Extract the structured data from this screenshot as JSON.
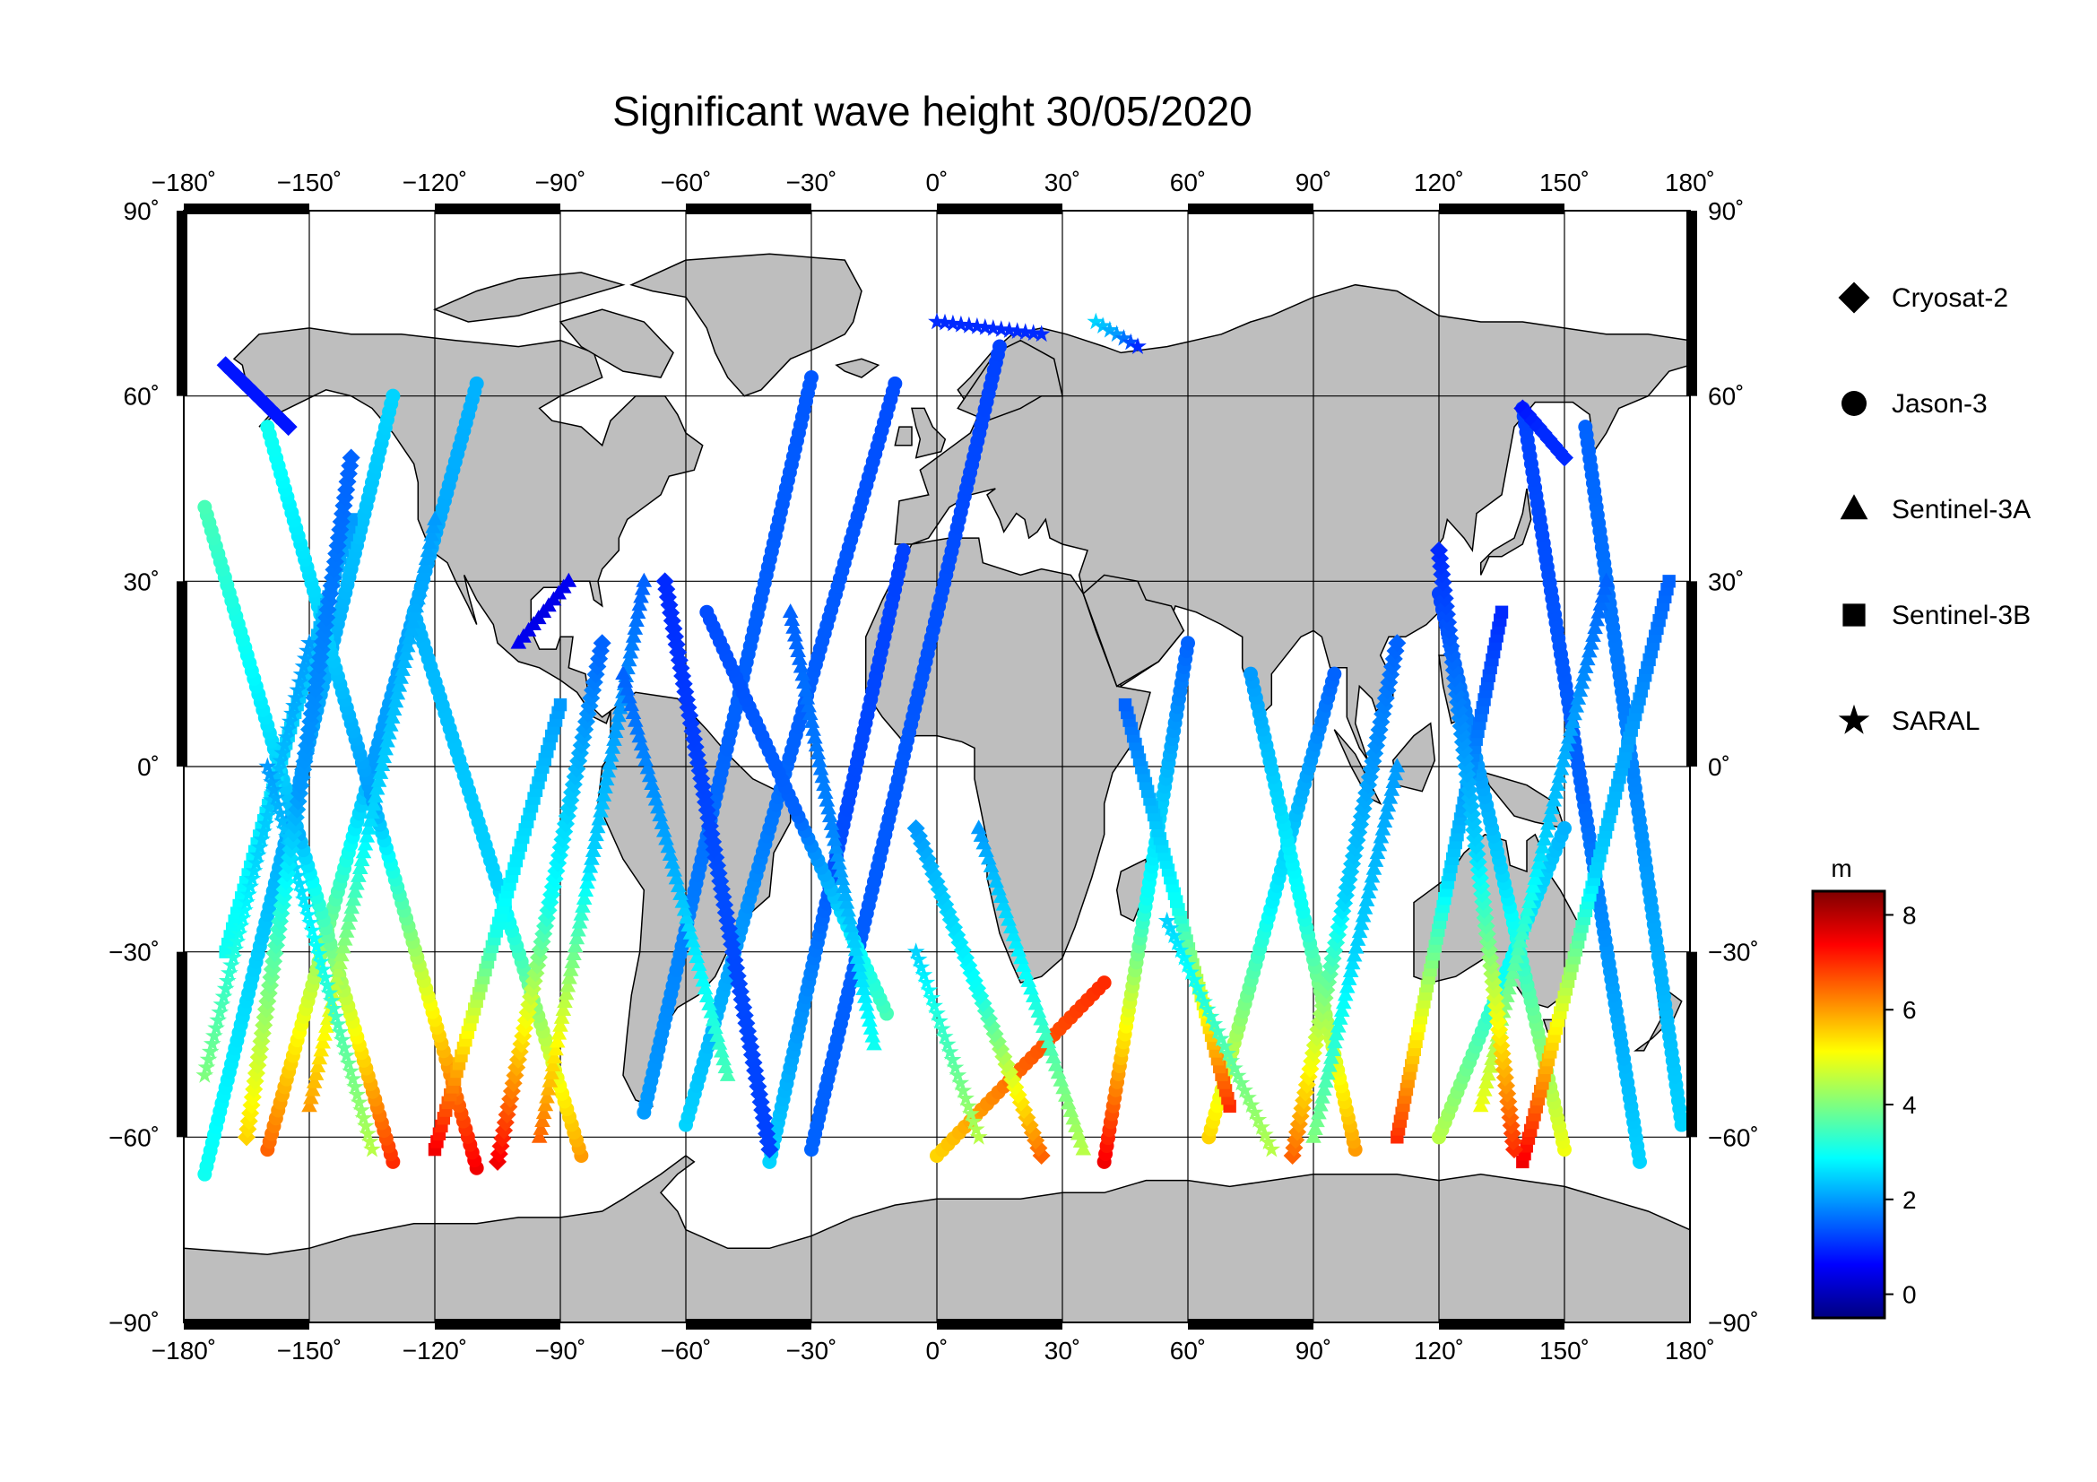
{
  "title": "Significant wave height 30/05/2020",
  "axes": {
    "lon_labels": [
      "−180˚",
      "−150˚",
      "−120˚",
      "−90˚",
      "−60˚",
      "−30˚",
      "0˚",
      "30˚",
      "60˚",
      "90˚",
      "120˚",
      "150˚",
      "180˚"
    ],
    "lat_labels": [
      "90˚",
      "60˚",
      "30˚",
      "0˚",
      "−30˚",
      "−60˚",
      "−90˚"
    ],
    "lon_range": [
      -180,
      180
    ],
    "lat_range": [
      -90,
      90
    ],
    "grid": true
  },
  "legend": {
    "placement": "right",
    "items": [
      {
        "label": "Cryosat-2",
        "symbol": "diamond-icon"
      },
      {
        "label": "Jason-3",
        "symbol": "circle-icon"
      },
      {
        "label": "Sentinel-3A",
        "symbol": "triangle-icon"
      },
      {
        "label": "Sentinel-3B",
        "symbol": "square-icon"
      },
      {
        "label": "SARAL",
        "symbol": "star-icon"
      }
    ]
  },
  "colorbar": {
    "unit": "m",
    "range": [
      -0.5,
      8.5
    ],
    "tick_labels": [
      "8",
      "6",
      "4",
      "2",
      "0"
    ],
    "colormap": "jet",
    "colors": [
      "#00007f",
      "#0000ff",
      "#007fff",
      "#00ffff",
      "#7fff7f",
      "#ffff00",
      "#ff7f00",
      "#ff0000",
      "#7f0000"
    ]
  },
  "colors": {
    "land": "#bebebe",
    "ocean": "#ffffff",
    "coast": "#000000",
    "frame": "#000000"
  },
  "chart_data": {
    "type": "scatter",
    "projection": "equirectangular",
    "x_unit": "longitude (degrees)",
    "y_unit": "latitude (degrees)",
    "value_unit": "m",
    "series": [
      {
        "name": "Jason-3",
        "marker": "circle",
        "tracks": [
          {
            "start": [
              -175,
              -66
            ],
            "end": [
              -130,
              60
            ],
            "hs_start": 3.0,
            "hs_mid": 2.0,
            "hs_end": 2.5
          },
          {
            "start": [
              -160,
              -62
            ],
            "end": [
              -110,
              62
            ],
            "hs_start": 6.5,
            "hs_mid": 2.0,
            "hs_end": 2.2
          },
          {
            "start": [
              -130,
              -64
            ],
            "end": [
              -175,
              42
            ],
            "hs_start": 7.0,
            "hs_mid": 2.2,
            "hs_end": 3.5
          },
          {
            "start": [
              -110,
              -65
            ],
            "end": [
              -160,
              55
            ],
            "hs_start": 7.5,
            "hs_mid": 2.0,
            "hs_end": 3.0
          },
          {
            "start": [
              -85,
              -63
            ],
            "end": [
              -125,
              25
            ],
            "hs_start": 6.0,
            "hs_mid": 2.5,
            "hs_end": 2.2
          },
          {
            "start": [
              -70,
              -56
            ],
            "end": [
              -30,
              63
            ],
            "hs_start": 2.0,
            "hs_mid": 1.5,
            "hs_end": 1.4
          },
          {
            "start": [
              -60,
              -58
            ],
            "end": [
              -10,
              62
            ],
            "hs_start": 2.5,
            "hs_mid": 1.5,
            "hs_end": 1.3
          },
          {
            "start": [
              -30,
              -62
            ],
            "end": [
              15,
              68
            ],
            "hs_start": 1.5,
            "hs_mid": 1.4,
            "hs_end": 1.2
          },
          {
            "start": [
              -40,
              -64
            ],
            "end": [
              -8,
              35
            ],
            "hs_start": 2.5,
            "hs_mid": 1.3,
            "hs_end": 1.2
          },
          {
            "start": [
              -12,
              -40
            ],
            "end": [
              -55,
              25
            ],
            "hs_start": 3.5,
            "hs_mid": 1.5,
            "hs_end": 1.3
          },
          {
            "start": [
              0,
              -63
            ],
            "end": [
              40,
              -35
            ],
            "hs_start": 5.5,
            "hs_mid": 6.5,
            "hs_end": 7.0
          },
          {
            "start": [
              40,
              -64
            ],
            "end": [
              60,
              20
            ],
            "hs_start": 7.5,
            "hs_mid": 3.0,
            "hs_end": 1.5
          },
          {
            "start": [
              65,
              -60
            ],
            "end": [
              95,
              15
            ],
            "hs_start": 5.5,
            "hs_mid": 2.8,
            "hs_end": 1.5
          },
          {
            "start": [
              100,
              -62
            ],
            "end": [
              75,
              15
            ],
            "hs_start": 6.0,
            "hs_mid": 3.0,
            "hs_end": 2.0
          },
          {
            "start": [
              120,
              -60
            ],
            "end": [
              150,
              -10
            ],
            "hs_start": 4.5,
            "hs_mid": 3.0,
            "hs_end": 2.2
          },
          {
            "start": [
              150,
              -62
            ],
            "end": [
              120,
              28
            ],
            "hs_start": 5.0,
            "hs_mid": 2.5,
            "hs_end": 1.2
          },
          {
            "start": [
              168,
              -64
            ],
            "end": [
              140,
              58
            ],
            "hs_start": 2.5,
            "hs_mid": 1.5,
            "hs_end": 1.2
          },
          {
            "start": [
              178,
              -58
            ],
            "end": [
              155,
              55
            ],
            "hs_start": 2.5,
            "hs_mid": 1.8,
            "hs_end": 1.5
          }
        ]
      },
      {
        "name": "Sentinel-3A",
        "marker": "triangle",
        "tracks": [
          {
            "start": [
              -150,
              -55
            ],
            "end": [
              -120,
              40
            ],
            "hs_start": 6.0,
            "hs_mid": 2.5,
            "hs_end": 2.0
          },
          {
            "start": [
              -95,
              -60
            ],
            "end": [
              -70,
              30
            ],
            "hs_start": 6.5,
            "hs_mid": 2.5,
            "hs_end": 1.5
          },
          {
            "start": [
              -50,
              -50
            ],
            "end": [
              -75,
              15
            ],
            "hs_start": 3.5,
            "hs_mid": 2.2,
            "hs_end": 1.5
          },
          {
            "start": [
              -15,
              -45
            ],
            "end": [
              -35,
              25
            ],
            "hs_start": 3.0,
            "hs_mid": 1.8,
            "hs_end": 1.5
          },
          {
            "start": [
              35,
              -62
            ],
            "end": [
              10,
              -10
            ],
            "hs_start": 4.5,
            "hs_mid": 3.0,
            "hs_end": 2.0
          },
          {
            "start": [
              90,
              -60
            ],
            "end": [
              110,
              0
            ],
            "hs_start": 4.0,
            "hs_mid": 2.5,
            "hs_end": 2.0
          },
          {
            "start": [
              130,
              -55
            ],
            "end": [
              160,
              30
            ],
            "hs_start": 5.0,
            "hs_mid": 2.5,
            "hs_end": 1.5
          },
          {
            "start": [
              -100,
              20
            ],
            "end": [
              -88,
              30
            ],
            "hs_start": 0.5,
            "hs_mid": 0.4,
            "hs_end": 0.5
          }
        ]
      },
      {
        "name": "Sentinel-3B",
        "marker": "square",
        "tracks": [
          {
            "start": [
              -170,
              -30
            ],
            "end": [
              -140,
              40
            ],
            "hs_start": 3.0,
            "hs_mid": 2.5,
            "hs_end": 2.0
          },
          {
            "start": [
              -120,
              -62
            ],
            "end": [
              -90,
              10
            ],
            "hs_start": 7.5,
            "hs_mid": 3.0,
            "hs_end": 2.0
          },
          {
            "start": [
              70,
              -55
            ],
            "end": [
              45,
              10
            ],
            "hs_start": 7.0,
            "hs_mid": 3.0,
            "hs_end": 1.5
          },
          {
            "start": [
              110,
              -60
            ],
            "end": [
              135,
              25
            ],
            "hs_start": 7.0,
            "hs_mid": 2.5,
            "hs_end": 1.0
          },
          {
            "start": [
              140,
              -64
            ],
            "end": [
              175,
              30
            ],
            "hs_start": 7.5,
            "hs_mid": 2.5,
            "hs_end": 1.5
          }
        ]
      },
      {
        "name": "SARAL",
        "marker": "star",
        "tracks": [
          {
            "start": [
              0,
              72
            ],
            "end": [
              25,
              70
            ],
            "hs_start": 1.0,
            "hs_mid": 1.0,
            "hs_end": 1.0
          },
          {
            "start": [
              38,
              72
            ],
            "end": [
              48,
              68
            ],
            "hs_start": 2.5,
            "hs_mid": 2.0,
            "hs_end": 1.0
          },
          {
            "start": [
              -175,
              -50
            ],
            "end": [
              -150,
              20
            ],
            "hs_start": 4.0,
            "hs_mid": 2.5,
            "hs_end": 2.0
          },
          {
            "start": [
              -135,
              -62
            ],
            "end": [
              -160,
              0
            ],
            "hs_start": 4.5,
            "hs_mid": 3.0,
            "hs_end": 2.0
          },
          {
            "start": [
              10,
              -60
            ],
            "end": [
              -5,
              -30
            ],
            "hs_start": 4.5,
            "hs_mid": 3.5,
            "hs_end": 2.5
          },
          {
            "start": [
              80,
              -62
            ],
            "end": [
              55,
              -25
            ],
            "hs_start": 4.5,
            "hs_mid": 3.5,
            "hs_end": 2.5
          }
        ]
      },
      {
        "name": "Cryosat-2",
        "marker": "diamond",
        "tracks": [
          {
            "start": [
              -165,
              -60
            ],
            "end": [
              -140,
              50
            ],
            "hs_start": 5.5,
            "hs_mid": 2.0,
            "hs_end": 1.5
          },
          {
            "start": [
              -105,
              -64
            ],
            "end": [
              -80,
              20
            ],
            "hs_start": 7.5,
            "hs_mid": 3.0,
            "hs_end": 1.5
          },
          {
            "start": [
              -40,
              -62
            ],
            "end": [
              -65,
              30
            ],
            "hs_start": 1.2,
            "hs_mid": 1.3,
            "hs_end": 1.0
          },
          {
            "start": [
              25,
              -63
            ],
            "end": [
              -5,
              -10
            ],
            "hs_start": 6.5,
            "hs_mid": 3.0,
            "hs_end": 2.0
          },
          {
            "start": [
              85,
              -63
            ],
            "end": [
              110,
              20
            ],
            "hs_start": 6.5,
            "hs_mid": 2.5,
            "hs_end": 1.5
          },
          {
            "start": [
              138,
              -62
            ],
            "end": [
              120,
              35
            ],
            "hs_start": 7.0,
            "hs_mid": 2.5,
            "hs_end": 1.0
          },
          {
            "start": [
              -170,
              65
            ],
            "end": [
              -155,
              55
            ],
            "hs_start": 0.8,
            "hs_mid": 0.8,
            "hs_end": 0.8
          },
          {
            "start": [
              140,
              58
            ],
            "end": [
              150,
              50
            ],
            "hs_start": 0.8,
            "hs_mid": 1.0,
            "hs_end": 1.0
          }
        ]
      }
    ]
  }
}
